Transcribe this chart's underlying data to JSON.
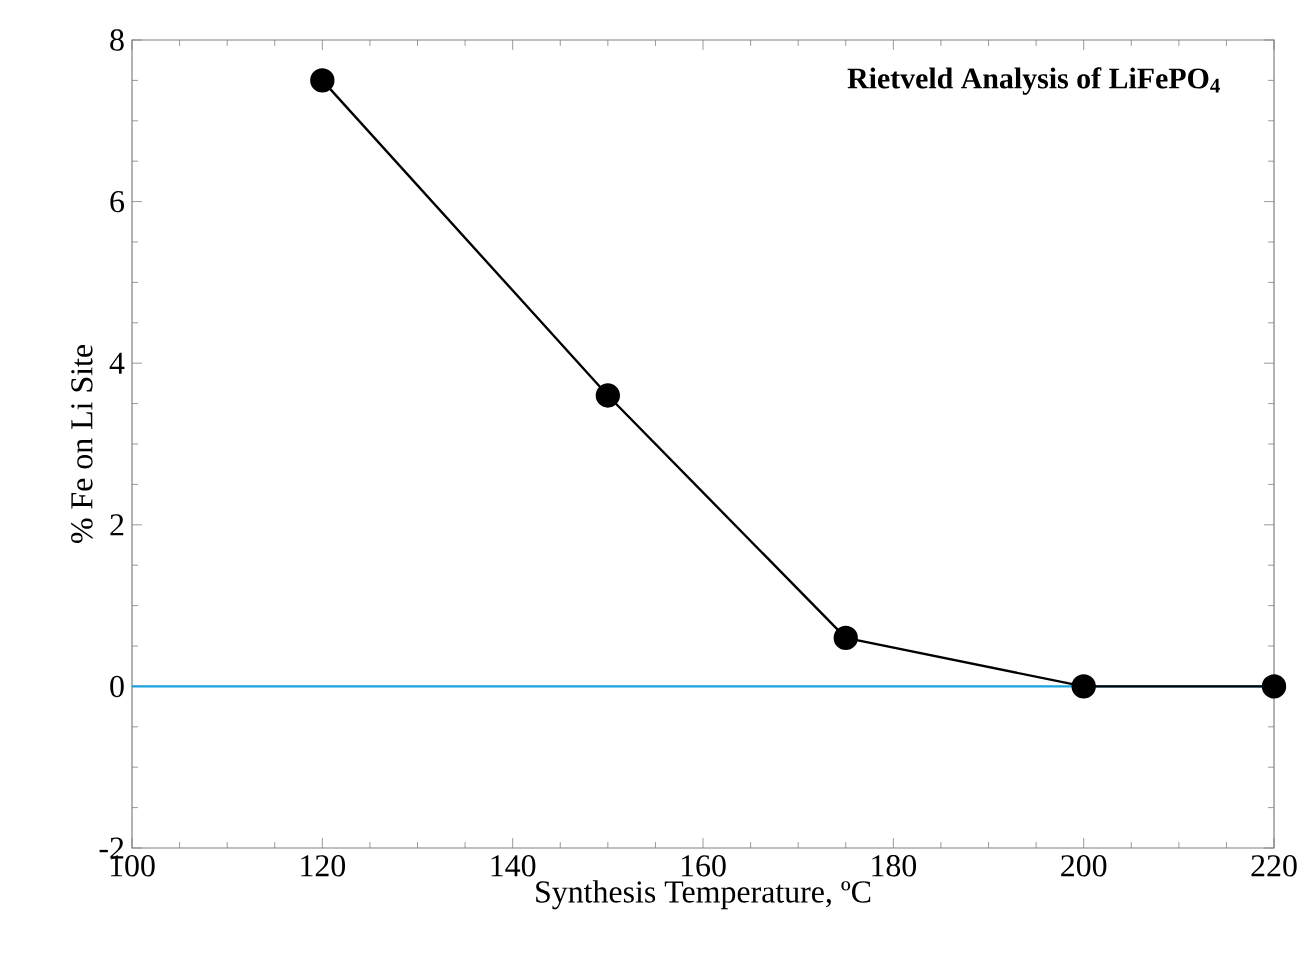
{
  "chart_data": {
    "type": "line",
    "title": "Rietveld Analysis of LiFePO$_{4}$",
    "xlabel": "Synthesis Temperature, ºC",
    "ylabel": "% Fe  on Li Site",
    "x": [
      120,
      150,
      175,
      200,
      220
    ],
    "series": [
      {
        "color": "#000000",
        "values": [
          7.5,
          3.6,
          0.6,
          0,
          0
        ]
      }
    ],
    "xlim": [
      100,
      220
    ],
    "xticks": [
      100,
      120,
      140,
      160,
      180,
      200,
      220
    ],
    "ylim": [
      -2,
      8
    ],
    "yticks": [
      -2,
      0,
      2,
      4,
      6,
      8
    ],
    "ref_lines": [
      {
        "axis": "y",
        "value": 0,
        "color": "#1aa3dc"
      }
    ],
    "marker": "circle",
    "line_style": "solid"
  }
}
